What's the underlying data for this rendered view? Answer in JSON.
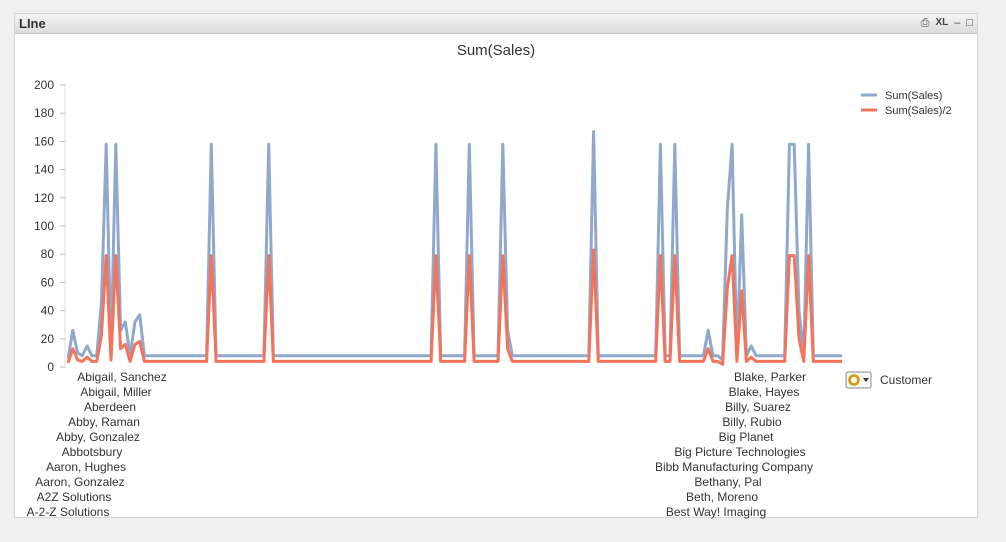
{
  "window": {
    "title": "LIne",
    "controls": {
      "print": "⎙",
      "xl": "XL",
      "minimize": "–",
      "maximize": "□"
    }
  },
  "dimension_selector": {
    "label": "Customer"
  },
  "colors": {
    "series1": "#8fa9cc",
    "series2": "#f4735b"
  },
  "chart_data": {
    "type": "line",
    "title": "Sum(Sales)",
    "ylim": [
      0,
      200
    ],
    "yticks": [
      0,
      20,
      40,
      60,
      80,
      100,
      120,
      140,
      160,
      180,
      200
    ],
    "legend_position": "top-right",
    "grid": false,
    "x_tick_labels_left": [
      "Abigail, Sanchez",
      "Abigail, Miller",
      "Aberdeen",
      "Abby, Raman",
      "Abby, Gonzalez",
      "Abbotsbury",
      "Aaron, Hughes",
      "Aaron, Gonzalez",
      "A2Z Solutions",
      "A-2-Z Solutions"
    ],
    "x_tick_labels_right": [
      "Blake, Parker",
      "Blake, Hayes",
      "Billy, Suarez",
      "Billy, Rubio",
      "Big Planet",
      "Big Picture Technologies",
      "Bibb Manufacturing Company",
      "Bethany, Pal",
      "Beth, Moreno",
      "Best Way! Imaging"
    ],
    "series": [
      {
        "name": "Sum(Sales)",
        "values": [
          6,
          26,
          10,
          8,
          15,
          8,
          8,
          45,
          158,
          10,
          158,
          26,
          32,
          8,
          32,
          37,
          8,
          8,
          8,
          8,
          8,
          8,
          8,
          8,
          8,
          8,
          8,
          8,
          8,
          8,
          158,
          8,
          8,
          8,
          8,
          8,
          8,
          8,
          8,
          8,
          8,
          8,
          158,
          8,
          8,
          8,
          8,
          8,
          8,
          8,
          8,
          8,
          8,
          8,
          8,
          8,
          8,
          8,
          8,
          8,
          8,
          8,
          8,
          8,
          8,
          8,
          8,
          8,
          8,
          8,
          8,
          8,
          8,
          8,
          8,
          8,
          8,
          158,
          8,
          8,
          8,
          8,
          8,
          8,
          158,
          8,
          8,
          8,
          8,
          8,
          8,
          158,
          26,
          8,
          8,
          8,
          8,
          8,
          8,
          8,
          8,
          8,
          8,
          8,
          8,
          8,
          8,
          8,
          8,
          8,
          167,
          8,
          8,
          8,
          8,
          8,
          8,
          8,
          8,
          8,
          8,
          8,
          8,
          8,
          158,
          8,
          8,
          158,
          8,
          8,
          8,
          8,
          8,
          8,
          26,
          8,
          8,
          5,
          112,
          158,
          8,
          108,
          8,
          15,
          8,
          8,
          8,
          8,
          8,
          8,
          8,
          158,
          158,
          40,
          8,
          158,
          8,
          8,
          8,
          8,
          8,
          8,
          8
        ]
      },
      {
        "name": "Sum(Sales)/2",
        "values": [
          3,
          13,
          5,
          4,
          7,
          4,
          4,
          22,
          79,
          5,
          79,
          13,
          16,
          4,
          16,
          18,
          4,
          4,
          4,
          4,
          4,
          4,
          4,
          4,
          4,
          4,
          4,
          4,
          4,
          4,
          79,
          4,
          4,
          4,
          4,
          4,
          4,
          4,
          4,
          4,
          4,
          4,
          79,
          4,
          4,
          4,
          4,
          4,
          4,
          4,
          4,
          4,
          4,
          4,
          4,
          4,
          4,
          4,
          4,
          4,
          4,
          4,
          4,
          4,
          4,
          4,
          4,
          4,
          4,
          4,
          4,
          4,
          4,
          4,
          4,
          4,
          4,
          79,
          4,
          4,
          4,
          4,
          4,
          4,
          79,
          4,
          4,
          4,
          4,
          4,
          4,
          79,
          13,
          4,
          4,
          4,
          4,
          4,
          4,
          4,
          4,
          4,
          4,
          4,
          4,
          4,
          4,
          4,
          4,
          4,
          83,
          4,
          4,
          4,
          4,
          4,
          4,
          4,
          4,
          4,
          4,
          4,
          4,
          4,
          79,
          4,
          4,
          79,
          4,
          4,
          4,
          4,
          4,
          4,
          13,
          4,
          4,
          2,
          56,
          79,
          4,
          54,
          4,
          7,
          4,
          4,
          4,
          4,
          4,
          4,
          4,
          79,
          79,
          20,
          4,
          79,
          4,
          4,
          4,
          4,
          4,
          4,
          4
        ]
      }
    ]
  }
}
